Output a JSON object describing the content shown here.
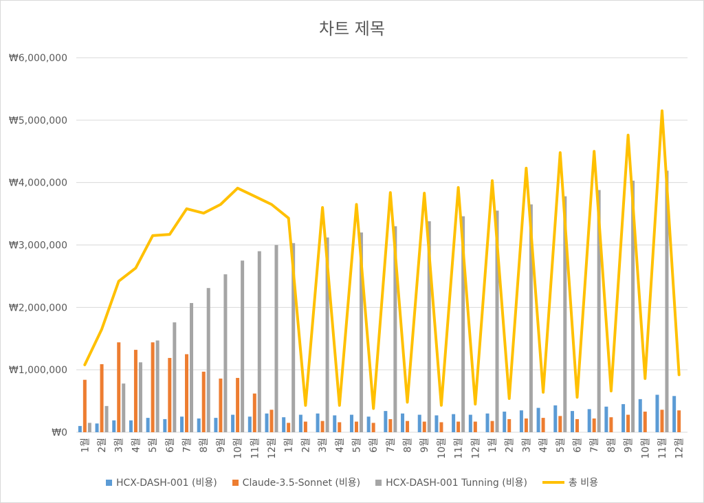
{
  "chart_data": {
    "type": "bar",
    "title": "차트 제목",
    "xlabel": "",
    "ylabel": "",
    "ylim": [
      0,
      6000000
    ],
    "yticks": [
      "₩0",
      "₩1,000,000",
      "₩2,000,000",
      "₩3,000,000",
      "₩4,000,000",
      "₩5,000,000",
      "₩6,000,000"
    ],
    "grid": true,
    "legend_position": "bottom",
    "categories": [
      "1월",
      "2월",
      "3월",
      "4월",
      "5월",
      "6월",
      "7월",
      "8월",
      "9월",
      "10월",
      "11월",
      "12월",
      "1월",
      "2월",
      "3월",
      "4월",
      "5월",
      "6월",
      "7월",
      "8월",
      "9월",
      "10월",
      "11월",
      "12월",
      "1월",
      "2월",
      "3월",
      "4월",
      "5월",
      "6월",
      "7월",
      "8월",
      "9월",
      "10월",
      "11월",
      "12월"
    ],
    "series": [
      {
        "name": "HCX-DASH-001 (비용)",
        "type": "bar",
        "color": "#5b9bd5",
        "values": [
          100000,
          140000,
          190000,
          190000,
          230000,
          210000,
          250000,
          220000,
          230000,
          280000,
          250000,
          300000,
          240000,
          280000,
          300000,
          270000,
          280000,
          250000,
          340000,
          300000,
          280000,
          270000,
          290000,
          280000,
          300000,
          330000,
          350000,
          390000,
          430000,
          340000,
          370000,
          410000,
          450000,
          530000,
          600000,
          580000
        ]
      },
      {
        "name": "Claude-3.5-Sonnet (비용)",
        "type": "bar",
        "color": "#ed7d31",
        "values": [
          840000,
          1090000,
          1440000,
          1320000,
          1440000,
          1190000,
          1250000,
          970000,
          860000,
          870000,
          620000,
          360000,
          150000,
          170000,
          180000,
          160000,
          170000,
          150000,
          210000,
          180000,
          170000,
          160000,
          170000,
          170000,
          180000,
          210000,
          220000,
          230000,
          260000,
          210000,
          220000,
          240000,
          280000,
          330000,
          360000,
          350000
        ]
      },
      {
        "name": "HCX-DASH-001 Tunning (비용)",
        "type": "bar",
        "color": "#a5a5a5",
        "values": [
          150000,
          420000,
          780000,
          1120000,
          1470000,
          1760000,
          2070000,
          2310000,
          2530000,
          2750000,
          2900000,
          3000000,
          3030000,
          0,
          3120000,
          0,
          3200000,
          0,
          3300000,
          0,
          3380000,
          0,
          3460000,
          0,
          3550000,
          0,
          3650000,
          0,
          3780000,
          0,
          3880000,
          0,
          4030000,
          0,
          4190000,
          0
        ]
      },
      {
        "name": "총 비용",
        "type": "line",
        "color": "#ffc000",
        "values": [
          1080000,
          1650000,
          2420000,
          2630000,
          3150000,
          3170000,
          3580000,
          3510000,
          3650000,
          3910000,
          3780000,
          3650000,
          3430000,
          430000,
          3600000,
          430000,
          3650000,
          380000,
          3840000,
          480000,
          3830000,
          430000,
          3920000,
          450000,
          4030000,
          540000,
          4230000,
          640000,
          4480000,
          560000,
          4500000,
          660000,
          4760000,
          860000,
          5150000,
          920000
        ]
      }
    ]
  }
}
